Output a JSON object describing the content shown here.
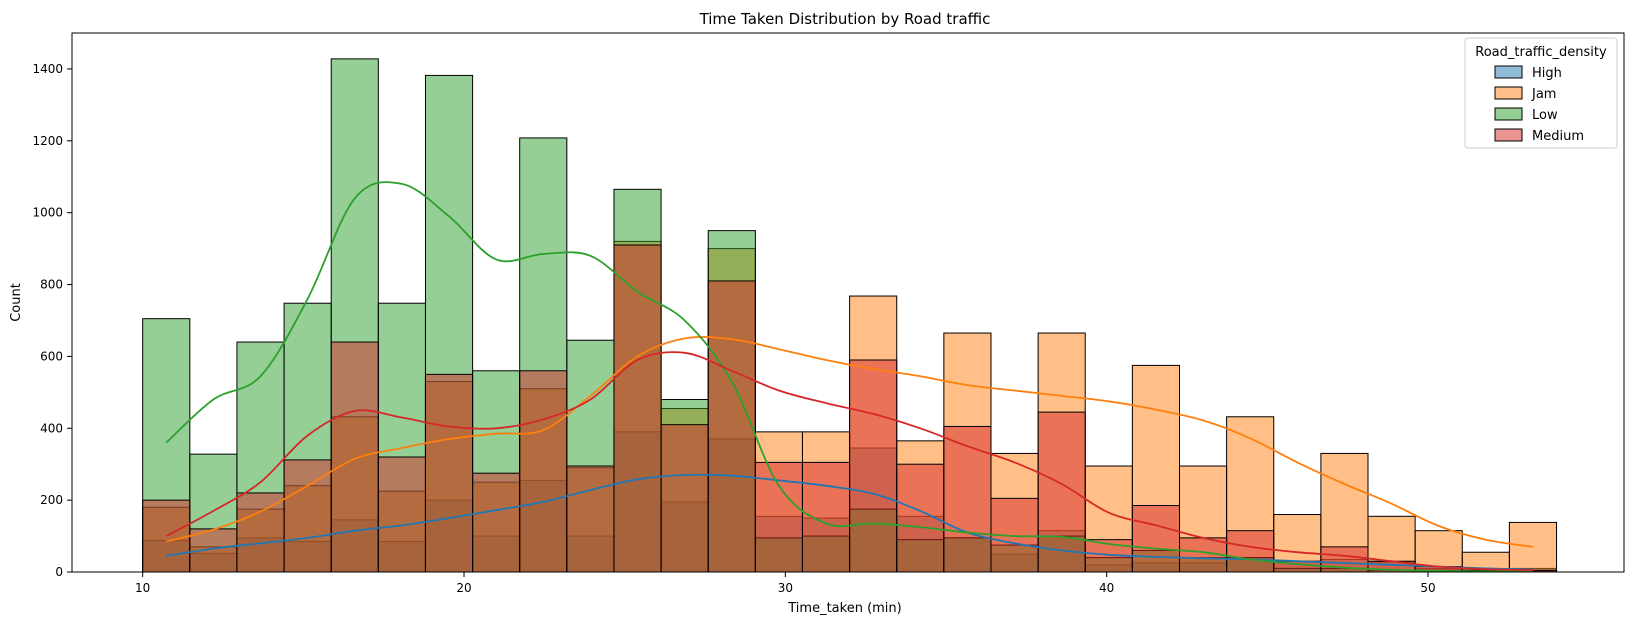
{
  "chart_data": {
    "type": "bar",
    "title": "Time Taken Distribution by Road traffic",
    "xlabel": "Time_taken (min)",
    "ylabel": "Count",
    "xlim": [
      7.8,
      56.1
    ],
    "ylim": [
      0,
      1500
    ],
    "xticks": [
      10,
      20,
      30,
      40,
      50
    ],
    "yticks": [
      0,
      200,
      400,
      600,
      800,
      1000,
      1200,
      1400
    ],
    "grid": false,
    "legend_title": "Road_traffic_density",
    "legend_position": "top-right",
    "bin_edges": [
      10,
      11.467,
      12.933,
      14.4,
      15.867,
      17.333,
      18.8,
      20.267,
      21.733,
      23.2,
      24.667,
      26.133,
      27.6,
      29.067,
      30.533,
      32,
      33.467,
      34.933,
      36.4,
      37.867,
      39.333,
      40.8,
      42.267,
      43.733,
      45.2,
      46.667,
      48.133,
      49.6,
      51.067,
      52.533,
      54
    ],
    "series": [
      {
        "name": "High",
        "color": "#1f77b4",
        "values": [
          88,
          52,
          95,
          85,
          145,
          85,
          200,
          100,
          255,
          100,
          390,
          195,
          370,
          155,
          150,
          345,
          155,
          95,
          50,
          115,
          20,
          25,
          25,
          40,
          30,
          35,
          28,
          10,
          5,
          10
        ],
        "kde": [
          45,
          65,
          80,
          95,
          115,
          130,
          150,
          172,
          195,
          228,
          258,
          270,
          268,
          255,
          240,
          218,
          170,
          110,
          80,
          60,
          48,
          42,
          38,
          35,
          30,
          25,
          20,
          15,
          10,
          7
        ]
      },
      {
        "name": "Jam",
        "color": "#ff7f0e",
        "values": [
          180,
          70,
          175,
          240,
          432,
          225,
          530,
          250,
          510,
          290,
          920,
          455,
          900,
          390,
          390,
          768,
          365,
          665,
          330,
          665,
          295,
          575,
          295,
          432,
          160,
          330,
          155,
          115,
          55,
          138
        ],
        "kde": [
          85,
          118,
          168,
          240,
          315,
          345,
          370,
          385,
          395,
          490,
          600,
          650,
          648,
          620,
          590,
          565,
          545,
          520,
          505,
          490,
          475,
          452,
          422,
          372,
          305,
          245,
          190,
          128,
          90,
          70
        ]
      },
      {
        "name": "Low",
        "color": "#2ca02c",
        "values": [
          705,
          328,
          640,
          748,
          1428,
          748,
          1382,
          560,
          1208,
          645,
          1065,
          480,
          950,
          95,
          100,
          175,
          90,
          95,
          75,
          100,
          40,
          60,
          40,
          40,
          10,
          10,
          5,
          5,
          3,
          3
        ],
        "kde": [
          360,
          480,
          545,
          760,
          1040,
          1080,
          990,
          870,
          885,
          880,
          780,
          700,
          530,
          240,
          135,
          135,
          125,
          110,
          100,
          98,
          78,
          65,
          55,
          35,
          22,
          12,
          6,
          3,
          2,
          1
        ]
      },
      {
        "name": "Medium",
        "color": "#d62728",
        "values": [
          200,
          120,
          220,
          312,
          640,
          320,
          550,
          275,
          560,
          295,
          910,
          410,
          810,
          305,
          305,
          590,
          300,
          405,
          205,
          445,
          90,
          185,
          95,
          115,
          30,
          70,
          30,
          15,
          5,
          5
        ],
        "kde": [
          100,
          170,
          250,
          380,
          448,
          430,
          405,
          400,
          425,
          480,
          590,
          610,
          560,
          505,
          470,
          440,
          400,
          350,
          305,
          245,
          165,
          130,
          95,
          70,
          55,
          45,
          30,
          15,
          8,
          5
        ]
      }
    ]
  }
}
